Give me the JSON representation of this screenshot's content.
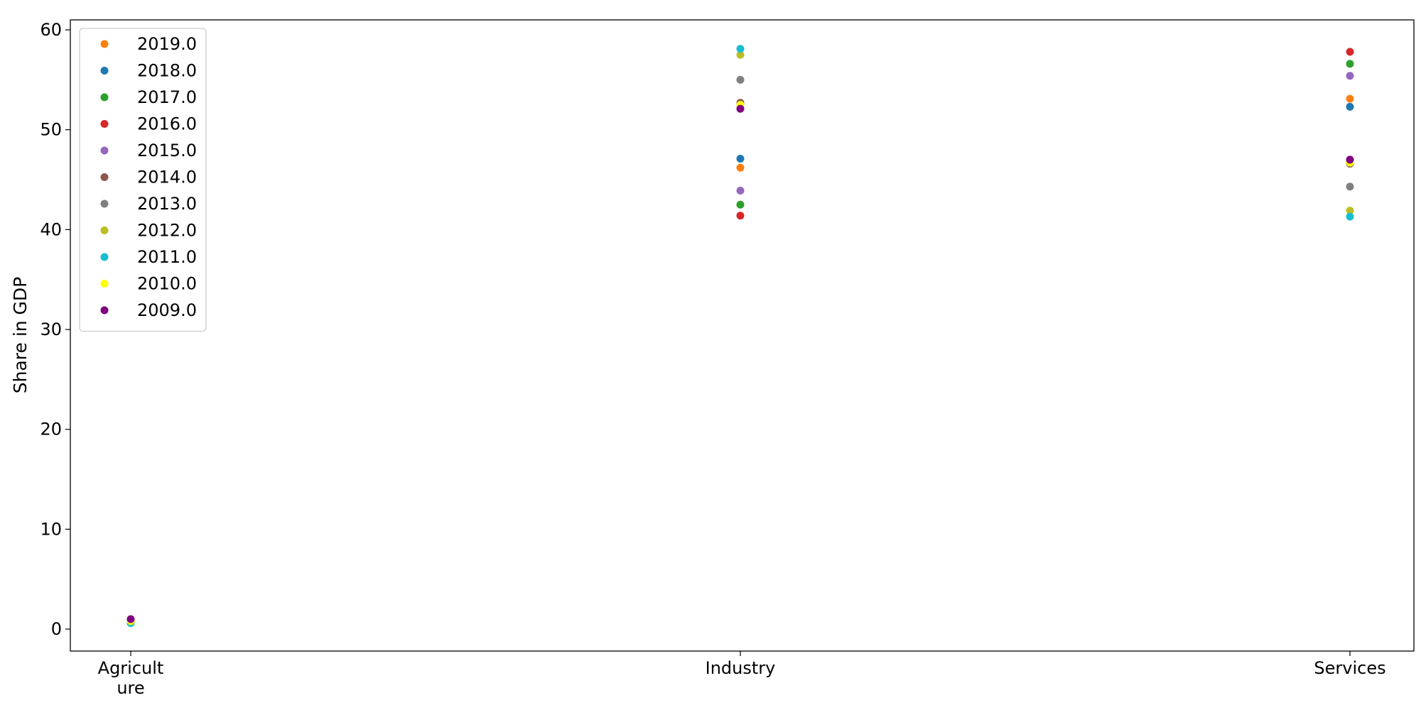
{
  "chart_data": {
    "type": "scatter",
    "title": "",
    "xlabel": "",
    "ylabel": "Share in GDP",
    "categories": [
      "Agricult\nure",
      "Industry",
      "Services"
    ],
    "ylim": [
      -2.2,
      61
    ],
    "yticks": [
      0,
      10,
      20,
      30,
      40,
      50,
      60
    ],
    "grid": false,
    "legend_position": "upper-left",
    "series": [
      {
        "name": "2019.0",
        "color": "#ff7f0e",
        "values": [
          0.7,
          46.2,
          53.1
        ]
      },
      {
        "name": "2018.0",
        "color": "#1f77b4",
        "values": [
          0.8,
          47.1,
          52.3
        ]
      },
      {
        "name": "2017.0",
        "color": "#2ca02c",
        "values": [
          0.9,
          42.5,
          56.6
        ]
      },
      {
        "name": "2016.0",
        "color": "#d62728",
        "values": [
          0.8,
          41.4,
          57.8
        ]
      },
      {
        "name": "2015.0",
        "color": "#9467bd",
        "values": [
          0.7,
          43.9,
          55.4
        ]
      },
      {
        "name": "2014.0",
        "color": "#8c564b",
        "values": [
          0.7,
          52.7,
          46.6
        ]
      },
      {
        "name": "2013.0",
        "color": "#7f7f7f",
        "values": [
          0.7,
          55.0,
          44.3
        ]
      },
      {
        "name": "2012.0",
        "color": "#bcbd22",
        "values": [
          0.6,
          57.5,
          41.9
        ]
      },
      {
        "name": "2011.0",
        "color": "#17becf",
        "values": [
          0.6,
          58.1,
          41.3
        ]
      },
      {
        "name": "2010.0",
        "color": "#ffff00",
        "values": [
          0.8,
          52.5,
          46.7
        ]
      },
      {
        "name": "2009.0",
        "color": "#800080",
        "values": [
          1.0,
          52.1,
          47.0
        ]
      }
    ]
  }
}
